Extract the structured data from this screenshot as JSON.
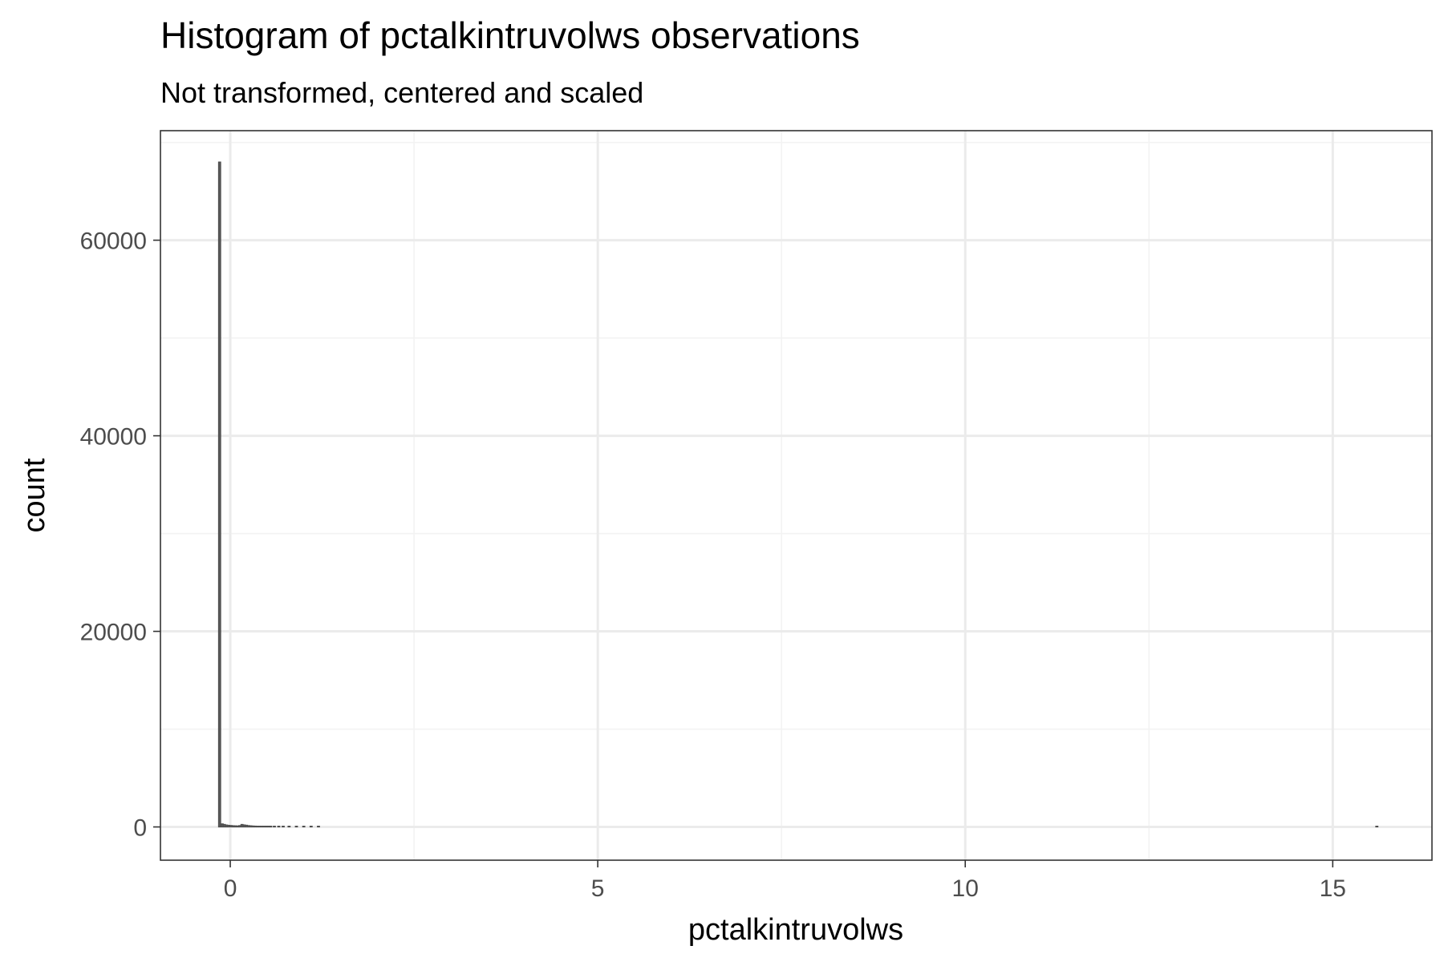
{
  "chart_data": {
    "type": "bar",
    "title": "Histogram of pctalkintruvolws observations",
    "subtitle": "Not transformed, centered and scaled",
    "xlabel": "pctalkintruvolws",
    "ylabel": "count",
    "xlim": [
      -0.95,
      16.35
    ],
    "ylim": [
      -3400,
      71200
    ],
    "x_ticks": [
      0,
      5,
      10,
      15
    ],
    "y_ticks": [
      0,
      20000,
      40000,
      60000
    ],
    "x_tick_labels": [
      "0",
      "5",
      "10",
      "15"
    ],
    "y_tick_labels": [
      "0",
      "20000",
      "40000",
      "60000"
    ],
    "grid": true,
    "bin_width": 0.0305,
    "bins": [
      {
        "x": -0.145,
        "count": 68000
      },
      {
        "x": -0.11,
        "count": 320
      },
      {
        "x": -0.08,
        "count": 260
      },
      {
        "x": -0.05,
        "count": 200
      },
      {
        "x": -0.02,
        "count": 170
      },
      {
        "x": 0.01,
        "count": 150
      },
      {
        "x": 0.04,
        "count": 130
      },
      {
        "x": 0.07,
        "count": 120
      },
      {
        "x": 0.1,
        "count": 110
      },
      {
        "x": 0.13,
        "count": 140
      },
      {
        "x": 0.16,
        "count": 260
      },
      {
        "x": 0.19,
        "count": 210
      },
      {
        "x": 0.22,
        "count": 180
      },
      {
        "x": 0.25,
        "count": 140
      },
      {
        "x": 0.28,
        "count": 120
      },
      {
        "x": 0.31,
        "count": 100
      },
      {
        "x": 0.34,
        "count": 90
      },
      {
        "x": 0.37,
        "count": 80
      },
      {
        "x": 0.4,
        "count": 70
      },
      {
        "x": 0.43,
        "count": 60
      },
      {
        "x": 0.46,
        "count": 55
      },
      {
        "x": 0.49,
        "count": 50
      },
      {
        "x": 0.52,
        "count": 45
      },
      {
        "x": 0.55,
        "count": 40
      },
      {
        "x": 0.6,
        "count": 35
      },
      {
        "x": 0.66,
        "count": 30
      },
      {
        "x": 0.72,
        "count": 25
      },
      {
        "x": 0.8,
        "count": 20
      },
      {
        "x": 0.9,
        "count": 15
      },
      {
        "x": 1.0,
        "count": 12
      },
      {
        "x": 1.1,
        "count": 10
      },
      {
        "x": 1.2,
        "count": 8
      },
      {
        "x": 15.6,
        "count": 5
      }
    ],
    "colors": {
      "bar_fill": "#595959",
      "bar_stroke": "#4d4d4d",
      "panel_background": "#ffffff",
      "panel_border": "#333333",
      "grid_major": "#ebebeb",
      "grid_minor": "#f3f3f3",
      "tick_label": "#4d4d4d",
      "tick_mark": "#333333",
      "text": "#000000"
    }
  }
}
